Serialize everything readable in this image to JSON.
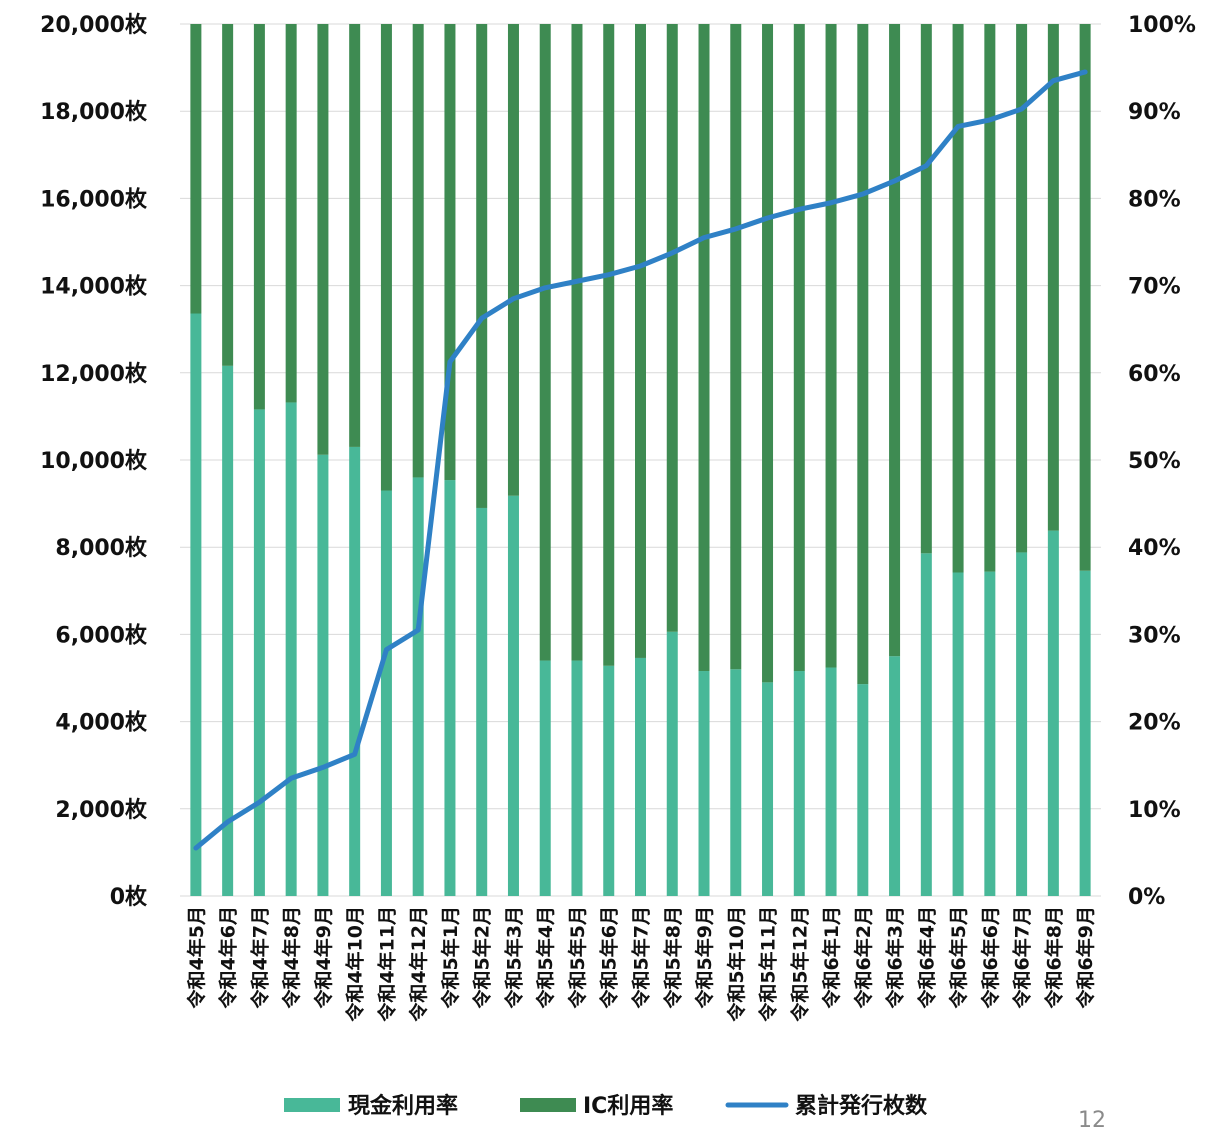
{
  "chart_data": {
    "type": "bar",
    "stacked": true,
    "categories": [
      "令和4年5月",
      "令和4年6月",
      "令和4年7月",
      "令和4年8月",
      "令和4年9月",
      "令和4年10月",
      "令和4年11月",
      "令和4年12月",
      "令和5年1月",
      "令和5年2月",
      "令和5年3月",
      "令和5年4月",
      "令和5年5月",
      "令和5年6月",
      "令和5年7月",
      "令和5年8月",
      "令和5年9月",
      "令和5年10月",
      "令和5年11月",
      "令和5年12月",
      "令和6年1月",
      "令和6年2月",
      "令和6年3月",
      "令和6年4月",
      "令和6年5月",
      "令和6年6月",
      "令和6年7月",
      "令和6年8月",
      "令和6年9月"
    ],
    "series": [
      {
        "name": "現金利用率",
        "type": "bar",
        "axis": "right",
        "color": "#48b898",
        "values": [
          66.8,
          60.8,
          55.8,
          56.6,
          50.6,
          51.5,
          46.5,
          48.0,
          47.7,
          44.5,
          45.9,
          27.0,
          27.0,
          26.4,
          27.3,
          30.3,
          25.8,
          26.0,
          24.5,
          25.8,
          26.2,
          24.3,
          27.5,
          39.3,
          37.1,
          37.2,
          39.4,
          41.9,
          37.3
        ]
      },
      {
        "name": "IC利用率",
        "type": "bar",
        "axis": "right",
        "color": "#3e8b52",
        "values": [
          33.2,
          39.2,
          44.2,
          43.4,
          49.4,
          48.5,
          53.5,
          52.0,
          52.3,
          55.5,
          54.1,
          73.0,
          73.0,
          73.6,
          72.7,
          69.7,
          74.2,
          74.0,
          75.5,
          74.2,
          73.8,
          75.7,
          72.5,
          60.7,
          62.9,
          62.8,
          60.6,
          58.1,
          62.7
        ]
      },
      {
        "name": "累計発行枚数",
        "type": "line",
        "axis": "left",
        "color": "#2f81c6",
        "values": [
          1100,
          1700,
          2150,
          2700,
          2950,
          3250,
          5650,
          6100,
          12250,
          13250,
          13700,
          13950,
          14100,
          14250,
          14450,
          14750,
          15100,
          15300,
          15550,
          15750,
          15900,
          16100,
          16400,
          16750,
          17650,
          17800,
          18050,
          18700,
          18900
        ]
      }
    ],
    "y_left": {
      "min": 0,
      "max": 20000,
      "ticks": [
        "0枚",
        "2,000枚",
        "4,000枚",
        "6,000枚",
        "8,000枚",
        "10,000枚",
        "12,000枚",
        "14,000枚",
        "16,000枚",
        "18,000枚",
        "20,000枚"
      ]
    },
    "y_right": {
      "min": 0,
      "max": 100,
      "ticks": [
        "0%",
        "10%",
        "20%",
        "30%",
        "40%",
        "50%",
        "60%",
        "70%",
        "80%",
        "90%",
        "100%"
      ]
    },
    "grid": true,
    "legend": "bottom",
    "legend_items": [
      "現金利用率",
      "IC利用率",
      "累計発行枚数"
    ]
  },
  "page_number": "12"
}
